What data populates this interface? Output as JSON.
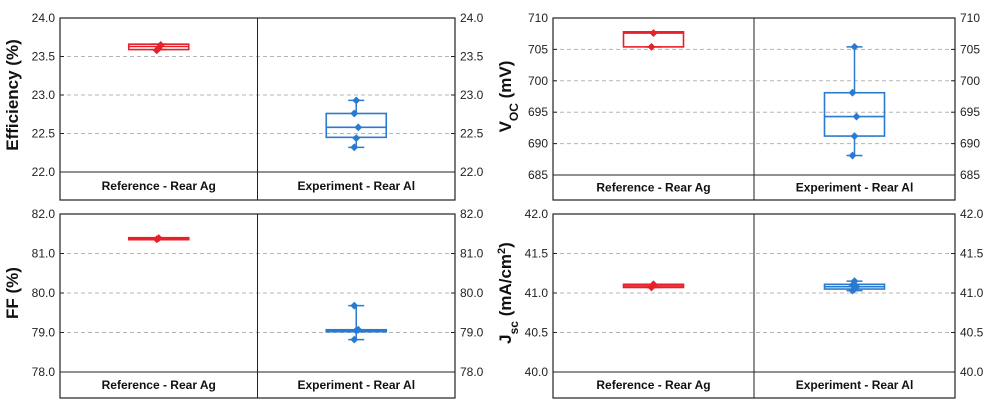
{
  "chart_data": [
    {
      "type": "box",
      "ylabel": "Efficiency (%)",
      "ylim": [
        22.0,
        24.0
      ],
      "yticks": [
        "22.0",
        "22.5",
        "23.0",
        "23.5",
        "24.0"
      ],
      "grid": true,
      "categories": [
        "Reference - Rear Ag",
        "Experiment - Rear Al"
      ],
      "series": [
        {
          "color": "#e8202a",
          "q1": 23.59,
          "median": 23.63,
          "q3": 23.66,
          "min": 23.59,
          "max": 23.66,
          "points": [
            23.58,
            23.61,
            23.65
          ]
        },
        {
          "color": "#2a7ad0",
          "q1": 22.45,
          "median": 22.58,
          "q3": 22.76,
          "min": 22.32,
          "max": 22.93,
          "points": [
            22.32,
            22.44,
            22.58,
            22.76,
            22.93
          ]
        }
      ]
    },
    {
      "type": "box",
      "ylabel": "VOC (mV)",
      "ylabel_main": "V",
      "ylabel_sub": "OC",
      "ylabel_rest": " (mV)",
      "ylim": [
        685,
        710
      ],
      "yticks": [
        "685",
        "690",
        "695",
        "700",
        "705",
        "710"
      ],
      "grid": true,
      "categories": [
        "Reference - Rear Ag",
        "Experiment - Rear Al"
      ],
      "series": [
        {
          "color": "#e8202a",
          "q1": 705.4,
          "median": 707.6,
          "q3": 707.8,
          "min": 705.4,
          "max": 707.8,
          "points": [
            705.4,
            707.6
          ]
        },
        {
          "color": "#2a7ad0",
          "q1": 691.2,
          "median": 694.3,
          "q3": 698.1,
          "min": 688.1,
          "max": 705.4,
          "points": [
            688.1,
            691.2,
            694.3,
            698.1,
            705.4
          ]
        }
      ]
    },
    {
      "type": "box",
      "ylabel": "FF (%)",
      "ylim": [
        78.0,
        82.0
      ],
      "yticks": [
        "78.0",
        "79.0",
        "80.0",
        "81.0",
        "82.0"
      ],
      "grid": true,
      "categories": [
        "Reference - Rear Ag",
        "Experiment - Rear Al"
      ],
      "series": [
        {
          "color": "#e8202a",
          "q1": 81.36,
          "median": 81.38,
          "q3": 81.4,
          "min": 81.36,
          "max": 81.4,
          "points": [
            81.36,
            81.39
          ]
        },
        {
          "color": "#2a7ad0",
          "q1": 79.03,
          "median": 79.05,
          "q3": 79.07,
          "min": 78.82,
          "max": 79.68,
          "points": [
            78.82,
            79.05,
            79.07,
            79.68
          ]
        }
      ]
    },
    {
      "type": "box",
      "ylabel": "Jsc (mA/cm2)",
      "ylabel_main": "J",
      "ylabel_sub": "sc",
      "ylabel_rest": " (mA/cm",
      "ylabel_sup": "2",
      "ylabel_end": ")",
      "ylim": [
        40.0,
        42.0
      ],
      "yticks": [
        "40.0",
        "40.5",
        "41.0",
        "41.5",
        "42.0"
      ],
      "grid": true,
      "categories": [
        "Reference - Rear Ag",
        "Experiment - Rear Al"
      ],
      "series": [
        {
          "color": "#e8202a",
          "q1": 41.07,
          "median": 41.09,
          "q3": 41.11,
          "min": 41.07,
          "max": 41.11,
          "points": [
            41.07,
            41.11
          ]
        },
        {
          "color": "#2a7ad0",
          "q1": 41.05,
          "median": 41.08,
          "q3": 41.11,
          "min": 41.03,
          "max": 41.15,
          "points": [
            41.03,
            41.05,
            41.08,
            41.1,
            41.15
          ]
        }
      ]
    }
  ]
}
